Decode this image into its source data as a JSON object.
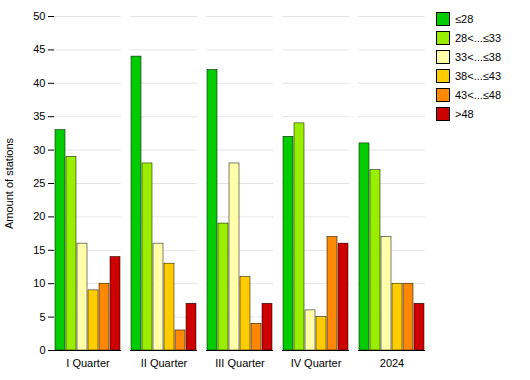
{
  "chart_data": {
    "type": "bar",
    "categories": [
      "I Quarter",
      "II Quarter",
      "III Quarter",
      "IV Quarter",
      "2024"
    ],
    "series": [
      {
        "name": "≤28",
        "color": "#00cc00",
        "values": [
          33,
          44,
          42,
          32,
          31
        ]
      },
      {
        "name": "28<...≤33",
        "color": "#99ee00",
        "values": [
          29,
          28,
          19,
          34,
          27
        ]
      },
      {
        "name": "33<...≤38",
        "color": "#ffffaa",
        "values": [
          16,
          16,
          28,
          6,
          17
        ]
      },
      {
        "name": "38<...≤43",
        "color": "#ffcc00",
        "values": [
          9,
          13,
          11,
          5,
          10
        ]
      },
      {
        "name": "43<...≤48",
        "color": "#ff8800",
        "values": [
          10,
          3,
          4,
          17,
          10
        ]
      },
      {
        "name": ">48",
        "color": "#cc0000",
        "values": [
          14,
          7,
          7,
          16,
          7
        ]
      }
    ],
    "ylabel": "Amount of stations",
    "ylim": [
      0,
      50
    ],
    "yticks": [
      0,
      5,
      10,
      15,
      20,
      25,
      30,
      35,
      40,
      45,
      50
    ],
    "grid": true,
    "legend": "upper right"
  }
}
